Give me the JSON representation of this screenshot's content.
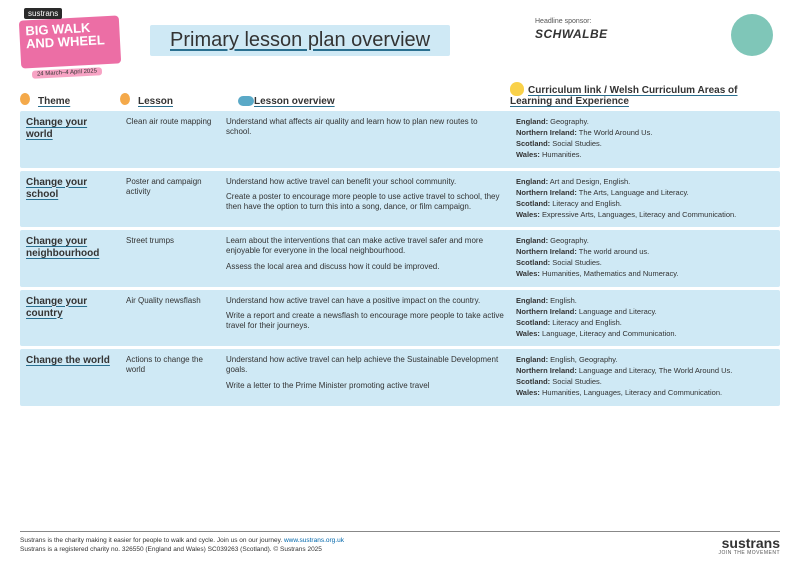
{
  "header": {
    "logo_brand": "sustrans",
    "logo_main": "BIG WALK AND WHEEL",
    "logo_date": "24 March–4 April 2025",
    "title": "Primary lesson plan overview",
    "sponsor_label": "Headline sponsor:",
    "sponsor_name": "SCHWALBE"
  },
  "columns": {
    "theme": "Theme",
    "lesson": "Lesson",
    "overview": "Lesson overview",
    "curriculum": "Curriculum link / Welsh Curriculum Areas of Learning and Experience"
  },
  "rows": [
    {
      "theme": "Change your world",
      "lesson": "Clean air route mapping",
      "overview": [
        "Understand what affects air quality and learn how to plan new routes to school."
      ],
      "curriculum": [
        {
          "region": "England:",
          "text": " Geography."
        },
        {
          "region": "Northern Ireland:",
          "text": " The World Around Us."
        },
        {
          "region": "Scotland:",
          "text": " Social Studies."
        },
        {
          "region": "Wales:",
          "text": " Humanities."
        }
      ]
    },
    {
      "theme": "Change your school",
      "lesson": "Poster and campaign activity",
      "overview": [
        "Understand how active travel can benefit your school community.",
        "Create a poster to encourage more people to use active travel to school, they then have the option to turn this into a song, dance, or film campaign."
      ],
      "curriculum": [
        {
          "region": "England:",
          "text": " Art and Design, English."
        },
        {
          "region": "Northern Ireland:",
          "text": " The Arts, Language and Literacy."
        },
        {
          "region": "Scotland:",
          "text": " Literacy and English."
        },
        {
          "region": "Wales:",
          "text": " Expressive Arts, Languages, Literacy and Communication."
        }
      ]
    },
    {
      "theme": "Change your neighbourhood",
      "lesson": "Street trumps",
      "overview": [
        "Learn about the interventions that can make active travel safer and more enjoyable for everyone in the local neighbourhood.",
        "Assess the local area and discuss how it could be improved."
      ],
      "curriculum": [
        {
          "region": "England:",
          "text": " Geography."
        },
        {
          "region": "Northern Ireland:",
          "text": " The world around us."
        },
        {
          "region": "Scotland:",
          "text": " Social Studies."
        },
        {
          "region": "Wales:",
          "text": " Humanities, Mathematics and Numeracy."
        }
      ]
    },
    {
      "theme": "Change your country",
      "lesson": "Air Quality newsflash",
      "overview": [
        "Understand how active travel can have a positive impact on the country.",
        "Write a report and create a newsflash to encourage more people to take active travel for their journeys."
      ],
      "curriculum": [
        {
          "region": "England:",
          "text": " English."
        },
        {
          "region": "Northern Ireland:",
          "text": " Language and Literacy."
        },
        {
          "region": "Scotland:",
          "text": " Literacy and English."
        },
        {
          "region": "Wales:",
          "text": " Language, Literacy and Communication."
        }
      ]
    },
    {
      "theme": "Change the world",
      "lesson": "Actions to change the world",
      "overview": [
        "Understand how active travel can help achieve the Sustainable Development goals.",
        "Write a letter to the Prime Minister promoting active travel"
      ],
      "curriculum": [
        {
          "region": "England:",
          "text": " English, Geography."
        },
        {
          "region": "Northern Ireland:",
          "text": " Language and Literacy, The World Around Us."
        },
        {
          "region": "Scotland:",
          "text": " Social Studies."
        },
        {
          "region": "Wales:",
          "text": " Humanities, Languages, Literacy and Communication."
        }
      ]
    }
  ],
  "footer": {
    "line1_pre": "Sustrans is the charity making it easier for people to walk and cycle. Join us on our journey. ",
    "line1_link": "www.sustrans.org.uk",
    "line2": "Sustrans is a registered charity no. 326550 (England and Wales) SC039263 (Scotland). © Sustrans 2025",
    "logo": "sustrans",
    "tagline": "JOIN THE MOVEMENT"
  },
  "colors": {
    "row_bg": "#cfe9f5",
    "underline": "#2a6f8f",
    "pink": "#ec6ea5"
  }
}
